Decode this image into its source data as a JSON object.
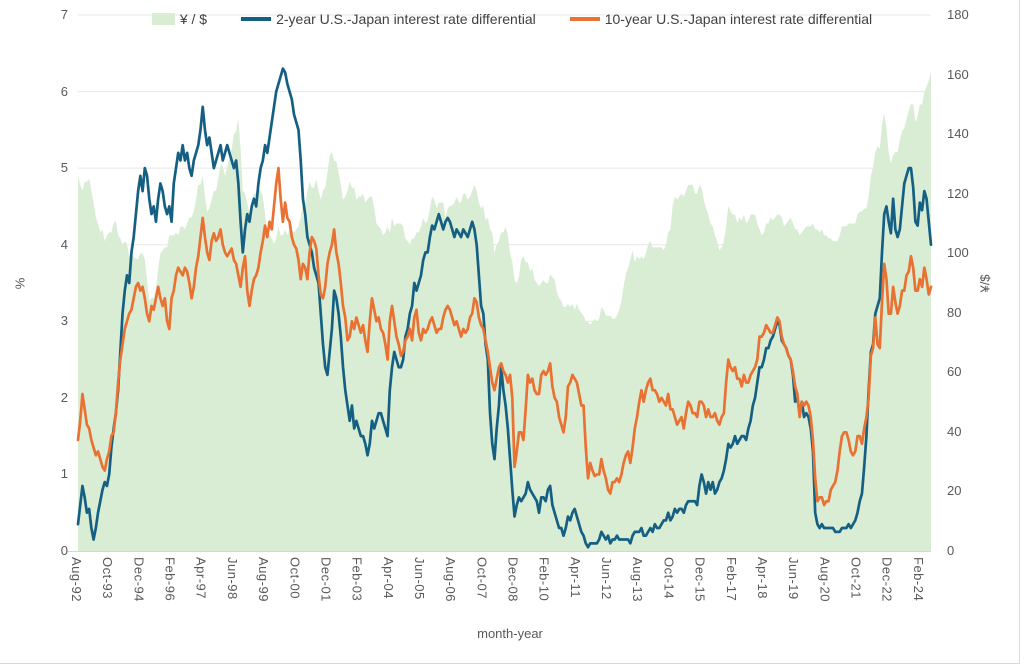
{
  "chart_data": {
    "type": "area+line combo",
    "title": "",
    "xlabel": "month-year",
    "x_start": "Aug-1992",
    "x_end": "Jul-2024",
    "x_frequency": "monthly",
    "x_tick_every_n_months": 14,
    "x_tick_labels": [
      "Aug-92",
      "Oct-93",
      "Dec-94",
      "Feb-96",
      "Apr-97",
      "Jun-98",
      "Aug-99",
      "Oct-00",
      "Dec-01",
      "Feb-03",
      "Apr-04",
      "Jun-05",
      "Aug-06",
      "Oct-07",
      "Dec-08",
      "Feb-10",
      "Apr-11",
      "Jun-12",
      "Aug-13",
      "Oct-14",
      "Dec-15",
      "Feb-17",
      "Apr-18",
      "Jun-19",
      "Aug-20",
      "Oct-21",
      "Dec-22",
      "Feb-24"
    ],
    "left_axis": {
      "label": "%",
      "min": 0,
      "max": 7,
      "step": 1
    },
    "right_axis": {
      "label": "¥/$",
      "min": 0,
      "max": 180,
      "step": 20
    },
    "grid": "horizontal",
    "legend_position": "top",
    "colors": {
      "area_fill": "#d9edd4",
      "line_2yr": "#156082",
      "line_10yr": "#E97132",
      "gridline": "#e7e7e7",
      "axis_line": "#d6d6d6",
      "tick_text": "#595959",
      "legend_text": "#404040"
    },
    "series": [
      {
        "name": "¥ / $",
        "type": "area",
        "axis": "right",
        "color": "#d9edd4",
        "values": [
          126,
          123,
          121,
          124,
          124,
          125,
          121,
          117,
          112,
          110,
          107,
          108,
          104,
          106,
          107,
          107,
          110,
          111,
          106,
          105,
          103,
          104,
          103,
          99,
          100,
          99,
          98,
          98,
          100,
          100,
          98,
          91,
          84,
          85,
          85,
          88,
          95,
          100,
          101,
          102,
          102,
          106,
          106,
          106,
          107,
          106,
          109,
          109,
          108,
          110,
          112,
          112,
          114,
          118,
          123,
          123,
          126,
          119,
          114,
          115,
          118,
          121,
          121,
          125,
          130,
          129,
          126,
          129,
          132,
          135,
          140,
          141,
          145,
          135,
          121,
          120,
          117,
          113,
          117,
          120,
          120,
          122,
          121,
          119,
          113,
          107,
          106,
          105,
          103,
          105,
          109,
          106,
          106,
          108,
          106,
          108,
          108,
          107,
          108,
          109,
          112,
          117,
          116,
          121,
          124,
          122,
          122,
          125,
          121,
          118,
          121,
          122,
          127,
          133,
          134,
          131,
          131,
          127,
          123,
          118,
          119,
          121,
          124,
          122,
          122,
          118,
          119,
          119,
          120,
          117,
          118,
          119,
          119,
          115,
          110,
          109,
          108,
          106,
          107,
          109,
          107,
          112,
          109,
          110,
          110,
          110,
          109,
          105,
          104,
          103,
          105,
          105,
          107,
          107,
          109,
          112,
          110,
          111,
          115,
          119,
          118,
          115,
          117,
          117,
          117,
          112,
          115,
          116,
          116,
          117,
          119,
          117,
          117,
          120,
          120,
          118,
          119,
          121,
          123,
          121,
          117,
          115,
          116,
          111,
          112,
          108,
          107,
          100,
          103,
          104,
          107,
          107,
          109,
          106,
          100,
          97,
          91,
          90,
          92,
          98,
          99,
          97,
          97,
          94,
          95,
          91,
          90,
          89,
          90,
          91,
          90,
          90,
          93,
          92,
          91,
          87,
          85,
          84,
          82,
          82,
          83,
          82,
          83,
          81,
          83,
          81,
          80,
          79,
          77,
          77,
          76,
          77,
          78,
          77,
          78,
          82,
          81,
          79,
          79,
          79,
          78,
          78,
          79,
          81,
          84,
          89,
          93,
          95,
          98,
          101,
          97,
          99,
          98,
          99,
          98,
          100,
          103,
          104,
          102,
          102,
          102,
          102,
          102,
          101,
          103,
          107,
          108,
          116,
          119,
          118,
          119,
          120,
          119,
          121,
          123,
          123,
          123,
          120,
          120,
          123,
          122,
          118,
          115,
          113,
          110,
          109,
          106,
          104,
          101,
          102,
          104,
          109,
          116,
          114,
          113,
          113,
          110,
          112,
          111,
          113,
          110,
          111,
          113,
          113,
          113,
          110,
          108,
          106,
          107,
          110,
          110,
          112,
          111,
          112,
          113,
          113,
          112,
          109,
          110,
          111,
          112,
          110,
          108,
          108,
          106,
          107,
          108,
          109,
          109,
          109,
          110,
          108,
          108,
          107,
          108,
          106,
          106,
          105,
          105,
          104,
          104,
          104,
          106,
          109,
          109,
          109,
          110,
          110,
          110,
          110,
          113,
          114,
          114,
          115,
          115,
          119,
          126,
          129,
          134,
          136,
          135,
          143,
          147,
          142,
          134,
          130,
          133,
          134,
          134,
          138,
          141,
          142,
          145,
          148,
          150,
          150,
          144,
          146,
          150,
          150,
          154,
          156,
          158,
          161
        ]
      },
      {
        "name": "2-year U.S.-Japan interest rate differential",
        "type": "line",
        "axis": "left",
        "color": "#156082",
        "values": [
          0.35,
          0.6,
          0.85,
          0.7,
          0.5,
          0.55,
          0.3,
          0.15,
          0.3,
          0.5,
          0.65,
          0.8,
          0.9,
          0.85,
          1.0,
          1.35,
          1.6,
          1.8,
          2.1,
          2.6,
          3.1,
          3.4,
          3.6,
          3.5,
          3.9,
          4.1,
          4.4,
          4.7,
          4.9,
          4.7,
          5.0,
          4.9,
          4.6,
          4.4,
          4.5,
          4.3,
          4.6,
          4.8,
          4.7,
          4.5,
          4.4,
          4.5,
          4.3,
          4.8,
          5.0,
          5.2,
          5.1,
          5.3,
          5.1,
          5.2,
          5.0,
          4.9,
          5.1,
          5.2,
          5.3,
          5.5,
          5.8,
          5.5,
          5.3,
          5.4,
          5.2,
          5.0,
          5.1,
          5.2,
          5.3,
          5.1,
          5.2,
          5.3,
          5.2,
          5.1,
          5.0,
          5.1,
          4.8,
          4.3,
          3.9,
          4.2,
          4.4,
          4.3,
          4.5,
          4.6,
          4.5,
          4.8,
          5.0,
          5.1,
          5.3,
          5.2,
          5.4,
          5.6,
          5.8,
          6.0,
          6.1,
          6.2,
          6.3,
          6.25,
          6.1,
          6.0,
          5.9,
          5.7,
          5.6,
          5.5,
          5.1,
          4.6,
          4.4,
          4.1,
          4.0,
          3.9,
          3.7,
          3.6,
          3.5,
          3.1,
          2.7,
          2.4,
          2.3,
          2.6,
          2.9,
          3.4,
          3.3,
          3.1,
          2.8,
          2.4,
          2.1,
          1.9,
          1.7,
          1.9,
          1.6,
          1.7,
          1.6,
          1.5,
          1.5,
          1.4,
          1.25,
          1.4,
          1.7,
          1.6,
          1.7,
          1.8,
          1.8,
          1.7,
          1.6,
          1.5,
          2.1,
          2.4,
          2.6,
          2.5,
          2.4,
          2.4,
          2.5,
          2.8,
          2.9,
          3.1,
          3.2,
          3.5,
          3.4,
          3.5,
          3.6,
          3.8,
          3.9,
          3.9,
          4.1,
          4.25,
          4.2,
          4.3,
          4.4,
          4.3,
          4.2,
          4.3,
          4.35,
          4.3,
          4.2,
          4.1,
          4.2,
          4.15,
          4.1,
          4.2,
          4.15,
          4.1,
          4.2,
          4.3,
          4.2,
          4.0,
          3.6,
          3.2,
          3.1,
          2.7,
          2.5,
          1.8,
          1.4,
          1.2,
          1.6,
          1.9,
          2.4,
          2.1,
          1.9,
          1.6,
          1.2,
          0.8,
          0.45,
          0.6,
          0.7,
          0.65,
          0.7,
          0.75,
          0.9,
          0.8,
          0.75,
          0.7,
          0.65,
          0.5,
          0.7,
          0.7,
          0.65,
          0.8,
          0.85,
          0.6,
          0.5,
          0.4,
          0.3,
          0.3,
          0.2,
          0.3,
          0.45,
          0.4,
          0.5,
          0.55,
          0.45,
          0.35,
          0.25,
          0.2,
          0.1,
          0.05,
          0.1,
          0.1,
          0.1,
          0.1,
          0.15,
          0.25,
          0.2,
          0.15,
          0.2,
          0.1,
          0.15,
          0.15,
          0.2,
          0.15,
          0.15,
          0.15,
          0.15,
          0.15,
          0.1,
          0.2,
          0.25,
          0.25,
          0.25,
          0.3,
          0.2,
          0.2,
          0.25,
          0.3,
          0.25,
          0.35,
          0.3,
          0.3,
          0.35,
          0.4,
          0.4,
          0.5,
          0.4,
          0.45,
          0.55,
          0.5,
          0.55,
          0.55,
          0.5,
          0.6,
          0.65,
          0.65,
          0.65,
          0.65,
          0.6,
          0.85,
          1.0,
          0.9,
          0.75,
          0.9,
          0.8,
          0.9,
          0.75,
          0.8,
          0.9,
          0.95,
          1.05,
          1.2,
          1.4,
          1.35,
          1.4,
          1.5,
          1.4,
          1.45,
          1.5,
          1.5,
          1.45,
          1.6,
          1.7,
          1.9,
          2.0,
          2.2,
          2.4,
          2.4,
          2.5,
          2.65,
          2.65,
          2.75,
          2.8,
          2.9,
          3.0,
          2.95,
          2.75,
          2.7,
          2.65,
          2.55,
          2.5,
          2.3,
          1.95,
          2.0,
          1.8,
          1.95,
          1.75,
          1.8,
          1.75,
          1.6,
          1.3,
          0.5,
          0.35,
          0.3,
          0.35,
          0.3,
          0.3,
          0.3,
          0.3,
          0.3,
          0.25,
          0.25,
          0.25,
          0.3,
          0.3,
          0.3,
          0.35,
          0.3,
          0.35,
          0.4,
          0.5,
          0.65,
          0.75,
          1.1,
          1.5,
          2.1,
          2.6,
          2.7,
          3.1,
          3.2,
          3.3,
          3.9,
          4.4,
          4.5,
          4.3,
          4.15,
          4.6,
          4.2,
          4.1,
          4.2,
          4.5,
          4.8,
          4.9,
          5.0,
          5.0,
          4.75,
          4.3,
          4.25,
          4.55,
          4.45,
          4.7,
          4.6,
          4.3,
          4.0
        ]
      },
      {
        "name": "10-year U.S.-Japan interest rate differential",
        "type": "line",
        "axis": "left",
        "color": "#E97132",
        "values": [
          1.45,
          1.7,
          2.05,
          1.85,
          1.65,
          1.6,
          1.45,
          1.35,
          1.25,
          1.3,
          1.2,
          1.1,
          1.05,
          1.2,
          1.3,
          1.5,
          1.55,
          1.8,
          2.2,
          2.5,
          2.7,
          2.9,
          3.0,
          3.1,
          3.15,
          3.3,
          3.45,
          3.5,
          3.4,
          3.45,
          3.3,
          3.1,
          3.0,
          3.2,
          3.15,
          3.3,
          3.45,
          3.3,
          3.2,
          3.3,
          3.0,
          2.9,
          3.3,
          3.4,
          3.6,
          3.7,
          3.65,
          3.6,
          3.7,
          3.65,
          3.5,
          3.3,
          3.45,
          3.7,
          3.85,
          4.1,
          4.35,
          4.1,
          3.9,
          3.8,
          4.05,
          4.15,
          4.05,
          4.1,
          4.2,
          4.0,
          3.9,
          3.85,
          3.9,
          3.95,
          3.8,
          3.75,
          3.6,
          3.45,
          3.7,
          3.85,
          3.4,
          3.2,
          3.4,
          3.55,
          3.6,
          3.7,
          3.9,
          4.05,
          4.25,
          4.1,
          4.3,
          4.2,
          4.5,
          4.8,
          5.0,
          4.6,
          4.3,
          4.55,
          4.35,
          4.3,
          4.1,
          4.0,
          3.95,
          3.8,
          3.55,
          3.75,
          3.7,
          3.55,
          3.9,
          4.1,
          4.05,
          3.95,
          3.6,
          3.35,
          3.3,
          3.45,
          3.75,
          3.9,
          4.0,
          4.2,
          3.9,
          3.75,
          3.5,
          3.2,
          3.05,
          2.75,
          2.8,
          3.0,
          2.9,
          3.05,
          2.95,
          2.85,
          2.95,
          2.75,
          2.6,
          3.0,
          3.3,
          3.15,
          3.0,
          3.05,
          2.9,
          2.85,
          2.7,
          2.5,
          3.0,
          3.2,
          3.0,
          2.8,
          2.7,
          2.55,
          2.6,
          2.75,
          2.8,
          2.9,
          2.75,
          3.05,
          3.15,
          2.85,
          2.75,
          2.9,
          2.85,
          2.9,
          3.0,
          3.05,
          2.95,
          2.85,
          2.9,
          2.9,
          3.05,
          3.15,
          3.2,
          3.15,
          3.05,
          2.95,
          3.0,
          2.9,
          2.8,
          2.9,
          2.85,
          2.9,
          3.05,
          3.1,
          3.3,
          3.25,
          3.05,
          2.95,
          2.9,
          2.75,
          2.6,
          2.4,
          2.2,
          2.1,
          2.25,
          2.4,
          2.45,
          2.35,
          2.3,
          2.2,
          2.3,
          2.0,
          1.1,
          1.3,
          1.55,
          1.55,
          1.45,
          1.85,
          2.3,
          2.2,
          2.25,
          2.1,
          2.05,
          2.05,
          2.3,
          2.35,
          2.3,
          2.35,
          2.45,
          2.15,
          2.0,
          1.95,
          1.75,
          1.65,
          1.55,
          1.75,
          2.15,
          2.2,
          2.3,
          2.25,
          2.2,
          2.05,
          1.9,
          1.9,
          1.35,
          0.95,
          1.15,
          1.05,
          0.98,
          1.0,
          1.0,
          1.2,
          1.05,
          0.95,
          0.8,
          0.75,
          0.9,
          0.9,
          0.95,
          0.9,
          1.0,
          1.15,
          1.25,
          1.3,
          1.15,
          1.35,
          1.6,
          1.75,
          1.95,
          2.1,
          1.95,
          2.1,
          2.2,
          2.25,
          2.1,
          2.1,
          2.05,
          1.95,
          2.0,
          1.95,
          1.9,
          2.05,
          1.85,
          1.85,
          1.75,
          1.65,
          1.7,
          1.75,
          1.6,
          1.8,
          1.95,
          1.9,
          1.8,
          1.8,
          1.75,
          1.95,
          1.95,
          1.9,
          1.75,
          1.85,
          1.75,
          1.75,
          1.8,
          1.7,
          1.65,
          1.75,
          1.8,
          2.2,
          2.5,
          2.4,
          2.35,
          2.4,
          2.25,
          2.25,
          2.15,
          2.3,
          2.2,
          2.2,
          2.3,
          2.35,
          2.4,
          2.5,
          2.8,
          2.8,
          2.85,
          2.95,
          2.9,
          2.85,
          2.85,
          2.95,
          3.05,
          3.0,
          2.8,
          2.7,
          2.65,
          2.55,
          2.5,
          2.35,
          2.15,
          2.05,
          1.75,
          1.95,
          1.9,
          1.95,
          1.9,
          1.75,
          1.45,
          0.95,
          0.65,
          0.7,
          0.7,
          0.6,
          0.65,
          0.65,
          0.8,
          0.85,
          0.9,
          1.05,
          1.3,
          1.5,
          1.55,
          1.55,
          1.45,
          1.3,
          1.25,
          1.3,
          1.5,
          1.5,
          1.4,
          1.6,
          1.75,
          2.0,
          2.55,
          2.65,
          3.05,
          2.7,
          2.65,
          3.25,
          3.75,
          3.55,
          3.1,
          3.1,
          3.45,
          3.25,
          3.1,
          3.2,
          3.4,
          3.4,
          3.6,
          3.65,
          3.85,
          3.7,
          3.4,
          3.4,
          3.55,
          3.45,
          3.7,
          3.55,
          3.35,
          3.45
        ]
      }
    ]
  }
}
